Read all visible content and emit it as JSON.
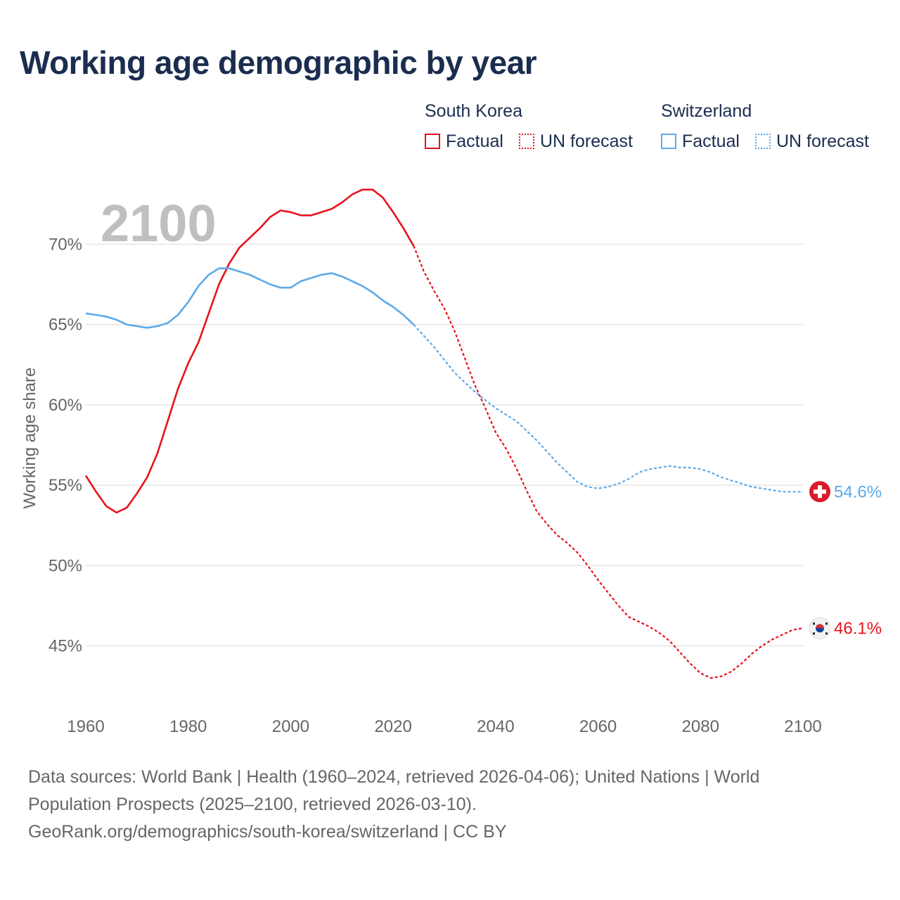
{
  "title": "Working age demographic by year",
  "legend": {
    "groups": [
      {
        "name": "South Korea",
        "factual_label": "Factual",
        "forecast_label": "UN forecast",
        "color": "#e8121d"
      },
      {
        "name": "Switzerland",
        "factual_label": "Factual",
        "forecast_label": "UN forecast",
        "color": "#5ea9e8"
      }
    ]
  },
  "sources": {
    "line1": "Data sources: World Bank | Health (1960–2024, retrieved 2026-04-06); United Nations | World",
    "line2": "Population Prospects (2025–2100, retrieved 2026-03-10).",
    "line3": "GeoRank.org/demographics/south-korea/switzerland | CC BY"
  },
  "colors": {
    "title": "#1b2d4f",
    "korea": "#e8121d",
    "swiss": "#5ea9e8",
    "grid": "#e6e6e6",
    "axis_text": "#666666",
    "year_label": "#bfbfbf"
  },
  "chart_data": {
    "type": "line",
    "title": "Working age demographic by year",
    "year_label": "2100",
    "xlabel": "",
    "ylabel": "Working age share",
    "xlim": [
      1960,
      2100
    ],
    "ylim": [
      41,
      74
    ],
    "x_ticks": [
      1960,
      1980,
      2000,
      2020,
      2040,
      2060,
      2080,
      2100
    ],
    "y_ticks": [
      45,
      50,
      55,
      60,
      65,
      70
    ],
    "y_tick_labels": [
      "45%",
      "50%",
      "55%",
      "60%",
      "65%",
      "70%"
    ],
    "forecast_start": 2024,
    "series": [
      {
        "name": "South Korea",
        "end_label": "46.1%",
        "icon": "south-korea-flag-icon",
        "points": [
          [
            1960,
            55.6
          ],
          [
            1962,
            54.6
          ],
          [
            1964,
            53.7
          ],
          [
            1966,
            53.3
          ],
          [
            1968,
            53.6
          ],
          [
            1970,
            54.5
          ],
          [
            1972,
            55.5
          ],
          [
            1974,
            57.0
          ],
          [
            1976,
            59.0
          ],
          [
            1978,
            61.0
          ],
          [
            1980,
            62.6
          ],
          [
            1982,
            63.9
          ],
          [
            1984,
            65.7
          ],
          [
            1986,
            67.5
          ],
          [
            1988,
            68.8
          ],
          [
            1990,
            69.8
          ],
          [
            1992,
            70.4
          ],
          [
            1994,
            71.0
          ],
          [
            1996,
            71.7
          ],
          [
            1998,
            72.1
          ],
          [
            2000,
            72.0
          ],
          [
            2002,
            71.8
          ],
          [
            2004,
            71.8
          ],
          [
            2006,
            72.0
          ],
          [
            2008,
            72.2
          ],
          [
            2010,
            72.6
          ],
          [
            2012,
            73.1
          ],
          [
            2014,
            73.4
          ],
          [
            2016,
            73.4
          ],
          [
            2018,
            72.9
          ],
          [
            2020,
            72.0
          ],
          [
            2022,
            71.0
          ],
          [
            2024,
            69.9
          ],
          [
            2026,
            68.3
          ],
          [
            2028,
            67.1
          ],
          [
            2030,
            66.0
          ],
          [
            2032,
            64.6
          ],
          [
            2034,
            62.9
          ],
          [
            2036,
            61.2
          ],
          [
            2038,
            59.8
          ],
          [
            2040,
            58.3
          ],
          [
            2042,
            57.3
          ],
          [
            2044,
            56.1
          ],
          [
            2046,
            54.7
          ],
          [
            2048,
            53.4
          ],
          [
            2050,
            52.6
          ],
          [
            2052,
            51.9
          ],
          [
            2054,
            51.4
          ],
          [
            2056,
            50.8
          ],
          [
            2058,
            50.0
          ],
          [
            2060,
            49.1
          ],
          [
            2062,
            48.3
          ],
          [
            2064,
            47.5
          ],
          [
            2066,
            46.8
          ],
          [
            2068,
            46.5
          ],
          [
            2070,
            46.2
          ],
          [
            2072,
            45.8
          ],
          [
            2074,
            45.3
          ],
          [
            2076,
            44.6
          ],
          [
            2078,
            43.9
          ],
          [
            2080,
            43.3
          ],
          [
            2082,
            43.0
          ],
          [
            2084,
            43.1
          ],
          [
            2086,
            43.4
          ],
          [
            2088,
            43.9
          ],
          [
            2090,
            44.5
          ],
          [
            2092,
            45.0
          ],
          [
            2094,
            45.4
          ],
          [
            2096,
            45.7
          ],
          [
            2098,
            46.0
          ],
          [
            2100,
            46.1
          ]
        ]
      },
      {
        "name": "Switzerland",
        "end_label": "54.6%",
        "icon": "switzerland-flag-icon",
        "points": [
          [
            1960,
            65.7
          ],
          [
            1962,
            65.6
          ],
          [
            1964,
            65.5
          ],
          [
            1966,
            65.3
          ],
          [
            1968,
            65.0
          ],
          [
            1970,
            64.9
          ],
          [
            1972,
            64.8
          ],
          [
            1974,
            64.9
          ],
          [
            1976,
            65.1
          ],
          [
            1978,
            65.6
          ],
          [
            1980,
            66.4
          ],
          [
            1982,
            67.4
          ],
          [
            1984,
            68.1
          ],
          [
            1986,
            68.5
          ],
          [
            1988,
            68.5
          ],
          [
            1990,
            68.3
          ],
          [
            1992,
            68.1
          ],
          [
            1994,
            67.8
          ],
          [
            1996,
            67.5
          ],
          [
            1998,
            67.3
          ],
          [
            2000,
            67.3
          ],
          [
            2002,
            67.7
          ],
          [
            2004,
            67.9
          ],
          [
            2006,
            68.1
          ],
          [
            2008,
            68.2
          ],
          [
            2010,
            68.0
          ],
          [
            2012,
            67.7
          ],
          [
            2014,
            67.4
          ],
          [
            2016,
            67.0
          ],
          [
            2018,
            66.5
          ],
          [
            2020,
            66.1
          ],
          [
            2022,
            65.6
          ],
          [
            2024,
            65.0
          ],
          [
            2026,
            64.3
          ],
          [
            2028,
            63.6
          ],
          [
            2030,
            62.8
          ],
          [
            2032,
            62.0
          ],
          [
            2034,
            61.4
          ],
          [
            2036,
            60.8
          ],
          [
            2038,
            60.3
          ],
          [
            2040,
            59.8
          ],
          [
            2042,
            59.4
          ],
          [
            2044,
            59.0
          ],
          [
            2046,
            58.4
          ],
          [
            2048,
            57.8
          ],
          [
            2050,
            57.1
          ],
          [
            2052,
            56.4
          ],
          [
            2054,
            55.8
          ],
          [
            2056,
            55.2
          ],
          [
            2058,
            54.9
          ],
          [
            2060,
            54.8
          ],
          [
            2062,
            54.9
          ],
          [
            2064,
            55.1
          ],
          [
            2066,
            55.4
          ],
          [
            2068,
            55.8
          ],
          [
            2070,
            56.0
          ],
          [
            2072,
            56.1
          ],
          [
            2074,
            56.2
          ],
          [
            2076,
            56.1
          ],
          [
            2078,
            56.1
          ],
          [
            2080,
            56.0
          ],
          [
            2082,
            55.8
          ],
          [
            2084,
            55.5
          ],
          [
            2086,
            55.3
          ],
          [
            2088,
            55.1
          ],
          [
            2090,
            54.9
          ],
          [
            2092,
            54.8
          ],
          [
            2094,
            54.7
          ],
          [
            2096,
            54.6
          ],
          [
            2098,
            54.6
          ],
          [
            2100,
            54.6
          ]
        ]
      }
    ]
  }
}
